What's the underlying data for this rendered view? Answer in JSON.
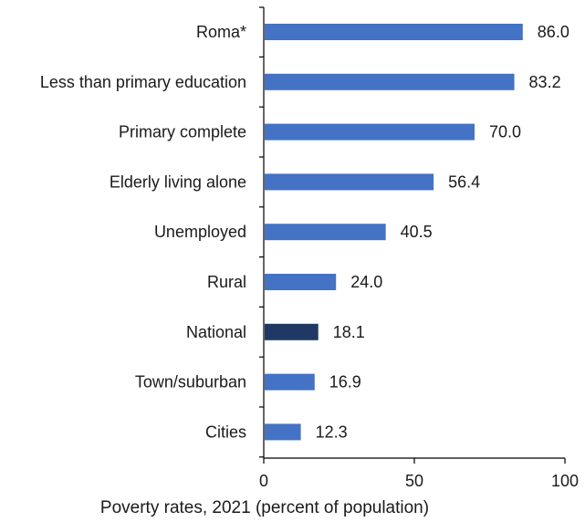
{
  "chart_data": {
    "type": "bar",
    "orientation": "horizontal",
    "categories": [
      "Roma*",
      "Less than primary education",
      "Primary complete",
      "Elderly living alone",
      "Unemployed",
      "Rural",
      "National",
      "Town/suburban",
      "Cities"
    ],
    "values": [
      86.0,
      83.2,
      70.0,
      56.4,
      40.5,
      24.0,
      18.1,
      16.9,
      12.3
    ],
    "value_labels": [
      "86.0",
      "83.2",
      "70.0",
      "56.4",
      "40.5",
      "24.0",
      "18.1",
      "16.9",
      "12.3"
    ],
    "highlight_category": "National",
    "colors": {
      "bar": "#4472c4",
      "highlight": "#1f3864",
      "axis": "#000000",
      "label": "#404040"
    },
    "xlabel": "Poverty rates, 2021 (percent of population)",
    "xlim": [
      0,
      100
    ],
    "xticks": [
      "0",
      "50",
      "100"
    ],
    "grid": false,
    "legend": "none"
  }
}
